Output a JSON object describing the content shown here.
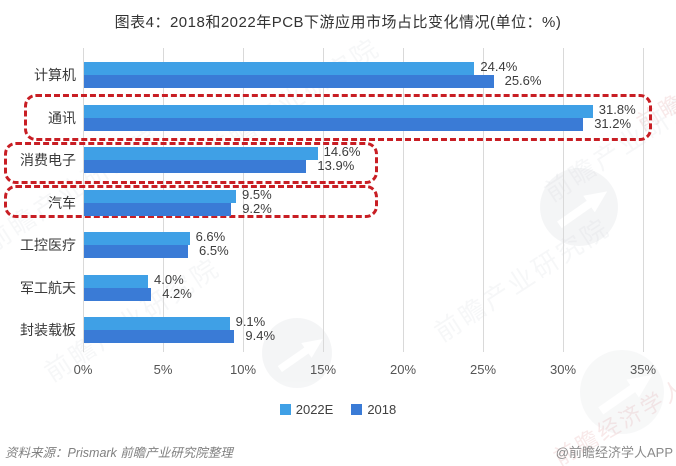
{
  "title": "图表4：2018和2022年PCB下游应用市场占比变化情况(单位：%)",
  "chart_data": {
    "type": "bar",
    "orientation": "horizontal",
    "title": "图表4：2018和2022年PCB下游应用市场占比变化情况(单位：%)",
    "categories": [
      "计算机",
      "通讯",
      "消费电子",
      "汽车",
      "工控医疗",
      "军工航天",
      "封装载板"
    ],
    "series": [
      {
        "name": "2022E",
        "color": "#3fa0e6",
        "values": [
          24.4,
          31.8,
          14.6,
          9.5,
          6.6,
          4.0,
          9.1
        ]
      },
      {
        "name": "2018",
        "color": "#3a7bd6",
        "values": [
          25.6,
          31.2,
          13.9,
          9.2,
          6.5,
          4.2,
          9.4
        ]
      }
    ],
    "value_suffix": "%",
    "xticks": [
      "0%",
      "5%",
      "10%",
      "15%",
      "20%",
      "25%",
      "30%",
      "35%"
    ],
    "xlim": [
      0,
      35
    ],
    "grid": true,
    "legend_position": "bottom",
    "highlighted_categories": [
      "通讯",
      "消费电子",
      "汽车"
    ],
    "highlight_color": "#c81e24"
  },
  "footer": {
    "source": "资料来源：Prismark 前瞻产业研究院整理",
    "credit": "@前瞻经济学人APP"
  },
  "watermarks": {
    "research_text": "前瞻产业研究院",
    "brand_text": "前瞻经济学人"
  }
}
